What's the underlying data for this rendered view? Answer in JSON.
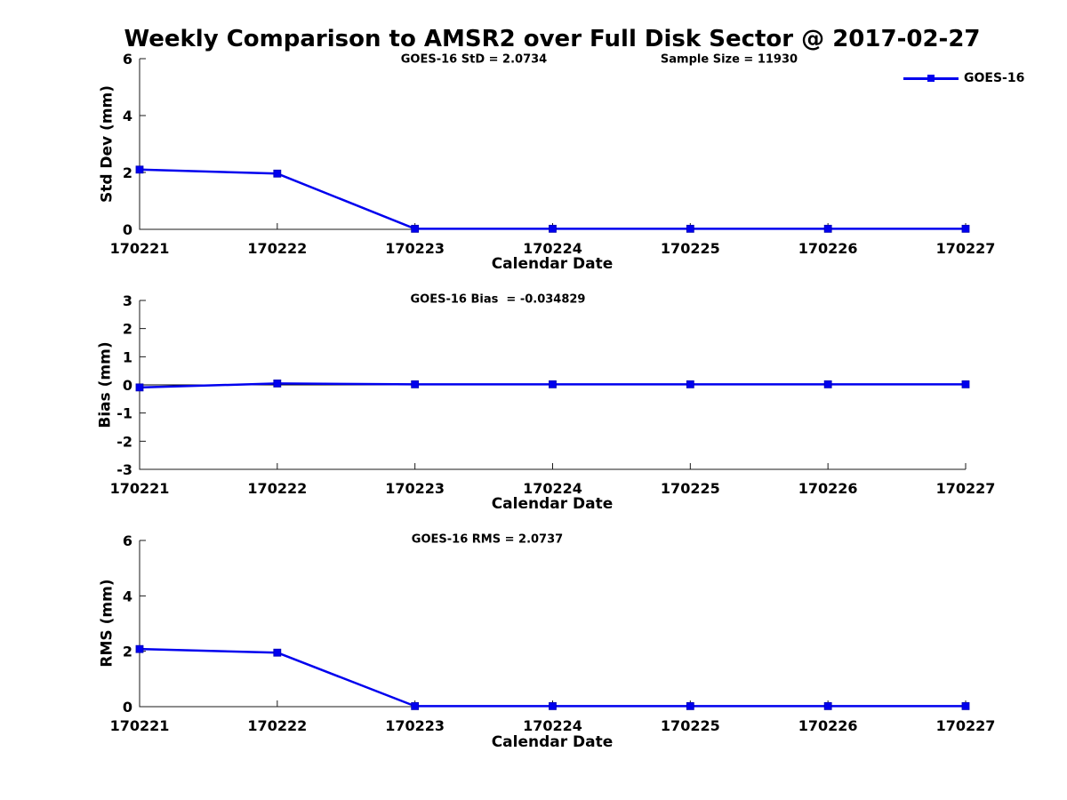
{
  "figure": {
    "title": "Weekly Comparison to AMSR2 over Full Disk Sector @ 2017-02-27",
    "legend": {
      "label": "GOES-16",
      "line_color": "#0000EE"
    }
  },
  "chart_data": [
    {
      "type": "line",
      "name": "std-dev",
      "series_name": "GOES-16",
      "annotations": [
        "GOES-16 StD = 2.0734",
        "Sample Size = 11930"
      ],
      "categories": [
        "170221",
        "170222",
        "170223",
        "170224",
        "170225",
        "170226",
        "170227"
      ],
      "values": [
        2.1,
        1.96,
        0.02,
        0.02,
        0.02,
        0.02,
        0.02
      ],
      "xlabel": "Calendar Date",
      "ylabel": "Std Dev (mm)",
      "ylim": [
        0,
        6
      ],
      "yticks": [
        0,
        2,
        4,
        6
      ],
      "line_color": "#0000EE",
      "marker": "square",
      "zero_line": false
    },
    {
      "type": "line",
      "name": "bias",
      "series_name": "GOES-16",
      "annotations": [
        "GOES-16 Bias  = -0.034829"
      ],
      "categories": [
        "170221",
        "170222",
        "170223",
        "170224",
        "170225",
        "170226",
        "170227"
      ],
      "values": [
        -0.09,
        0.05,
        0.02,
        0.02,
        0.02,
        0.02,
        0.02
      ],
      "xlabel": "Calendar Date",
      "ylabel": "Bias (mm)",
      "ylim": [
        -3,
        3
      ],
      "yticks": [
        -3,
        -2,
        -1,
        0,
        1,
        2,
        3
      ],
      "line_color": "#0000EE",
      "marker": "square",
      "zero_line": true
    },
    {
      "type": "line",
      "name": "rms",
      "series_name": "GOES-16",
      "annotations": [
        "GOES-16 RMS = 2.0737"
      ],
      "categories": [
        "170221",
        "170222",
        "170223",
        "170224",
        "170225",
        "170226",
        "170227"
      ],
      "values": [
        2.08,
        1.95,
        0.02,
        0.02,
        0.02,
        0.02,
        0.02
      ],
      "xlabel": "Calendar Date",
      "ylabel": "RMS (mm)",
      "ylim": [
        0,
        6
      ],
      "yticks": [
        0,
        2,
        4,
        6
      ],
      "line_color": "#0000EE",
      "marker": "square",
      "zero_line": false
    }
  ]
}
